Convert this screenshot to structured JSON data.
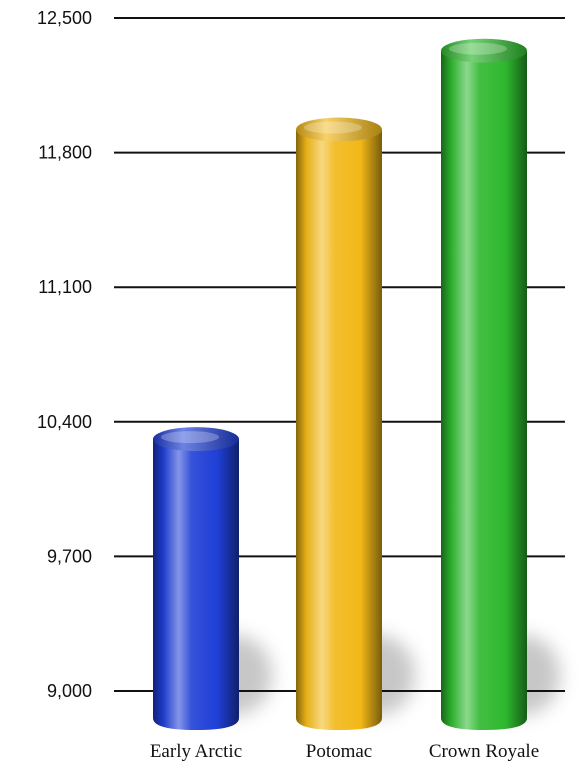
{
  "chart_data": {
    "type": "bar",
    "title": "",
    "xlabel": "",
    "ylabel": "",
    "categories": [
      "Early Arctic",
      "Potomac",
      "Crown Royale"
    ],
    "values": [
      10310,
      11920,
      12330
    ],
    "ylim": [
      9000,
      12500
    ],
    "yticks": [
      9000,
      9700,
      10400,
      11100,
      11800,
      12500
    ],
    "ytick_labels": [
      "9,000",
      "9,700",
      "10,400",
      "11,100",
      "11,800",
      "12,500"
    ],
    "grid": true,
    "legend": "none",
    "colors": [
      "#1f3fd6",
      "#f2b818",
      "#2eb82e"
    ]
  }
}
